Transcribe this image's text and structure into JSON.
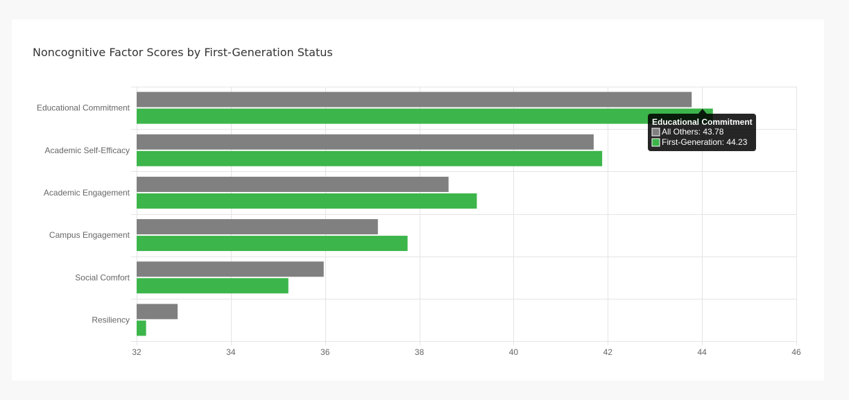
{
  "chart_data": {
    "type": "bar",
    "orientation": "horizontal",
    "title": "Noncognitive Factor Scores by First-Generation Status",
    "categories": [
      "Educational Commitment",
      "Academic Self-Efficacy",
      "Academic Engagement",
      "Campus Engagement",
      "Social Comfort",
      "Resiliency"
    ],
    "series": [
      {
        "name": "All Others",
        "color": "#808080",
        "values": [
          43.78,
          41.7,
          38.62,
          37.12,
          35.97,
          32.87
        ]
      },
      {
        "name": "First-Generation",
        "color": "#3cb54a",
        "values": [
          44.23,
          41.88,
          39.22,
          37.75,
          35.22,
          32.2
        ]
      }
    ],
    "xlim": [
      32,
      46
    ],
    "xticks": [
      32,
      34,
      36,
      38,
      40,
      42,
      44,
      46
    ],
    "grid": true,
    "legend": "none"
  },
  "tooltip": {
    "title": "Educational Commitment",
    "lines": [
      "All Others: 43.78",
      "First-Generation: 44.23"
    ],
    "colors": [
      "#808080",
      "#3cb54a"
    ]
  }
}
